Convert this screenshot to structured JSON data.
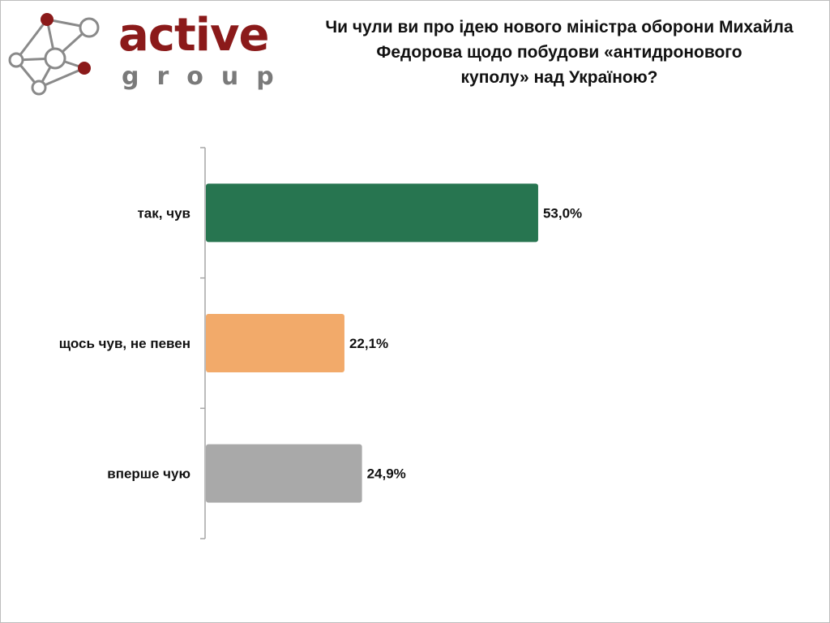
{
  "logo": {
    "word": "active",
    "sub": "group"
  },
  "title_lines": [
    "Чи чули ви про ідею нового міністра оборони Михайла",
    "Федорова щодо побудови «антидронового",
    "куполу» над Україною?"
  ],
  "chart_data": {
    "type": "bar",
    "orientation": "horizontal",
    "title": "Чи чули ви про ідею нового міністра оборони Михайла Федорова щодо побудови «антидронового куполу» над Україною?",
    "categories": [
      "так, чув",
      "щось чув, не певен",
      "вперше чую"
    ],
    "values": [
      53.0,
      22.1,
      24.9
    ],
    "value_labels": [
      "53,0%",
      "22,1%",
      "24,9%"
    ],
    "colors": [
      "#277550",
      "#f2aa6a",
      "#a9a9a9"
    ],
    "xlim": [
      0,
      100
    ],
    "grid": false,
    "legend": "none"
  }
}
